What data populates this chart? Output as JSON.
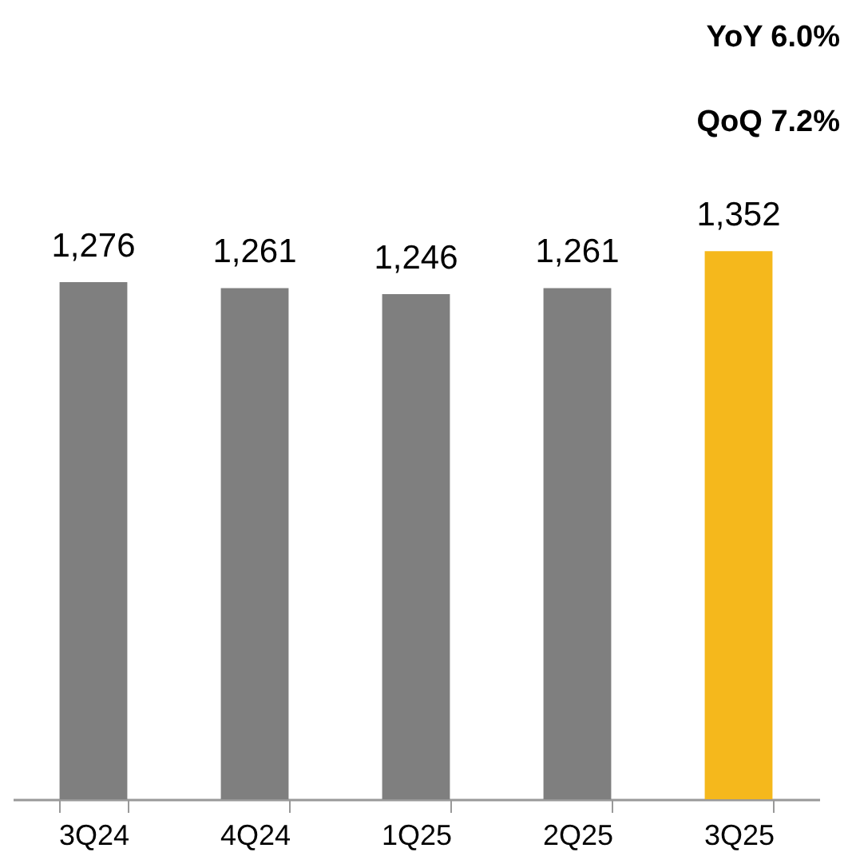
{
  "chart_data": {
    "type": "bar",
    "categories": [
      "3Q24",
      "4Q24",
      "1Q25",
      "2Q25",
      "3Q25"
    ],
    "values": [
      1276,
      1261,
      1246,
      1261,
      1352
    ],
    "colors": [
      "#7f7f7f",
      "#7f7f7f",
      "#7f7f7f",
      "#7f7f7f",
      "#f5b81c"
    ],
    "value_labels": [
      "1,276",
      "1,261",
      "1,246",
      "1,261",
      "1,352"
    ],
    "annotations": [
      "YoY  6.0%",
      "QoQ 7.2%"
    ],
    "grid": false,
    "tick_labels": "x"
  }
}
